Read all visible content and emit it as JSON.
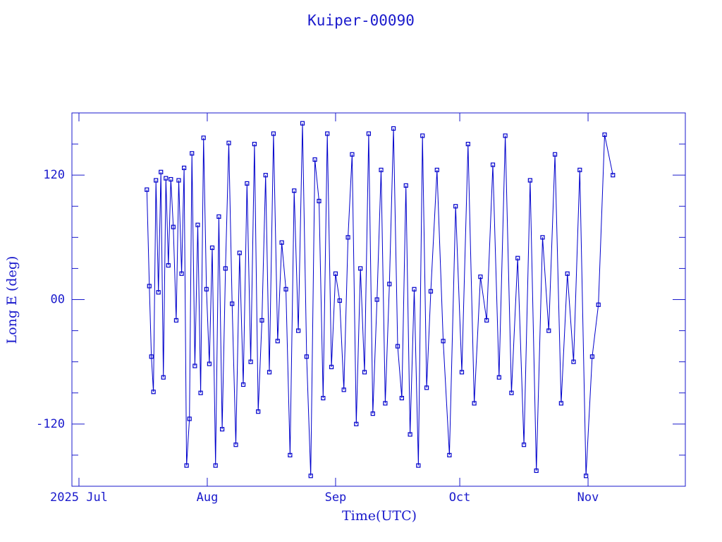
{
  "chart_data": {
    "type": "line",
    "title": "Kuiper-00090",
    "x_label": "Time(UTC)",
    "y_label": "Long E (deg)",
    "color": "#0000cc",
    "x": [
      16.4,
      17.0,
      17.5,
      18.0,
      18.6,
      19.2,
      19.8,
      20.4,
      21.0,
      21.6,
      22.2,
      22.8,
      23.5,
      24.1,
      24.8,
      25.4,
      26.0,
      26.7,
      27.3,
      28.0,
      28.7,
      29.4,
      30.1,
      30.8,
      31.5,
      32.2,
      33.0,
      33.8,
      34.6,
      35.4,
      36.2,
      37.0,
      37.9,
      38.8,
      39.7,
      40.6,
      41.5,
      42.4,
      43.3,
      44.2,
      45.1,
      46.0,
      47.0,
      48.0,
      49.0,
      50.0,
      51.0,
      52.0,
      53.0,
      54.0,
      55.0,
      56.0,
      57.0,
      58.0,
      59.0,
      60.0,
      61.0,
      62.0,
      63.0,
      64.0,
      65.0,
      66.0,
      67.0,
      68.0,
      69.0,
      70.0,
      71.0,
      72.0,
      73.0,
      74.0,
      75.0,
      76.0,
      77.0,
      78.0,
      79.0,
      80.0,
      81.0,
      82.0,
      83.0,
      84.0,
      85.0,
      86.5,
      88.0,
      89.5,
      91.0,
      92.5,
      94.0,
      95.5,
      97.0,
      98.5,
      100.0,
      101.5,
      103.0,
      104.5,
      106.0,
      107.5,
      109.0,
      110.5,
      112.0,
      113.5,
      115.0,
      116.5,
      118.0,
      119.5,
      121.0,
      122.5,
      124.0,
      125.5,
      127.0,
      129.0
    ],
    "values": [
      106,
      13,
      -55,
      -89,
      115,
      7,
      123,
      -75,
      117,
      33,
      116,
      70,
      -20,
      115,
      25,
      127,
      -160,
      -115,
      141,
      -64,
      72,
      -90,
      156,
      10,
      -62,
      50,
      -160,
      80,
      -125,
      30,
      151,
      -4,
      -140,
      45,
      -82,
      112,
      -60,
      150,
      -108,
      -20,
      120,
      -70,
      160,
      -40,
      55,
      10,
      -150,
      105,
      -30,
      170,
      -55,
      -170,
      135,
      95,
      -95,
      160,
      -65,
      25,
      -1,
      -87,
      60,
      140,
      -120,
      30,
      -70,
      160,
      -110,
      0,
      125,
      -100,
      15,
      165,
      -45,
      -95,
      110,
      -130,
      10,
      -160,
      158,
      -85,
      8,
      125,
      -40,
      -150,
      90,
      -70,
      150,
      -100,
      22,
      -20,
      130,
      -75,
      158,
      -90,
      40,
      -140,
      115,
      -165,
      60,
      -30,
      140,
      -100,
      25,
      -60,
      125,
      -170,
      -55,
      -5,
      159,
      120
    ],
    "xlim": [
      -1.7,
      146.5
    ],
    "xticks": [
      {
        "value": 0,
        "label": "2025 Jul"
      },
      {
        "value": 31,
        "label": "Aug"
      },
      {
        "value": 62,
        "label": "Sep"
      },
      {
        "value": 92,
        "label": "Oct"
      },
      {
        "value": 123,
        "label": "Nov"
      }
    ],
    "ylim": [
      -180,
      180
    ],
    "yticks": [
      -120,
      {
        "value": 0,
        "label": "00"
      },
      120
    ],
    "yminorticks": [
      -150,
      -90,
      -60,
      -30,
      30,
      60,
      90,
      150
    ]
  }
}
